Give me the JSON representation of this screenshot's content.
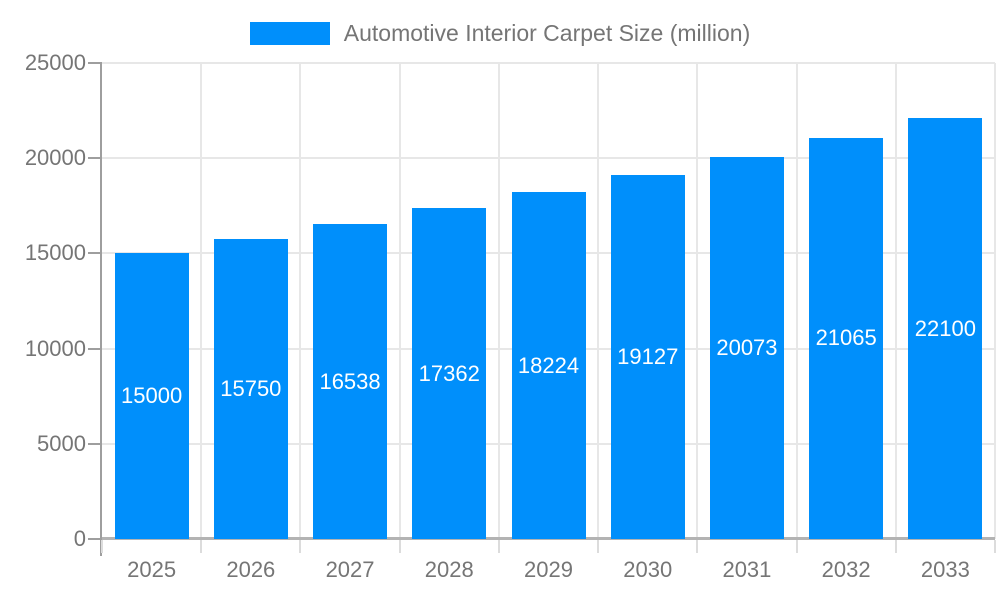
{
  "chart_data": {
    "type": "bar",
    "title": "Automotive Interior Carpet Size (million)",
    "categories": [
      "2025",
      "2026",
      "2027",
      "2028",
      "2029",
      "2030",
      "2031",
      "2032",
      "2033"
    ],
    "series": [
      {
        "name": "Automotive Interior Carpet Size (million)",
        "values": [
          15000,
          15750,
          16538,
          17362,
          18224,
          19127,
          20073,
          21065,
          22100
        ]
      }
    ],
    "xlabel": "",
    "ylabel": "",
    "ylim": [
      0,
      25000
    ],
    "ytick_step": 5000,
    "ytick_labels": [
      "0",
      "5000",
      "10000",
      "15000",
      "20000",
      "25000"
    ],
    "grid": "on",
    "legend_position": "top",
    "bar_color": "#008FFB",
    "data_label_color": "#ffffff",
    "axis_text_color": "#757575",
    "gridline_color": "#e7e7e7",
    "axis_line_color": "#9e9e9e"
  }
}
